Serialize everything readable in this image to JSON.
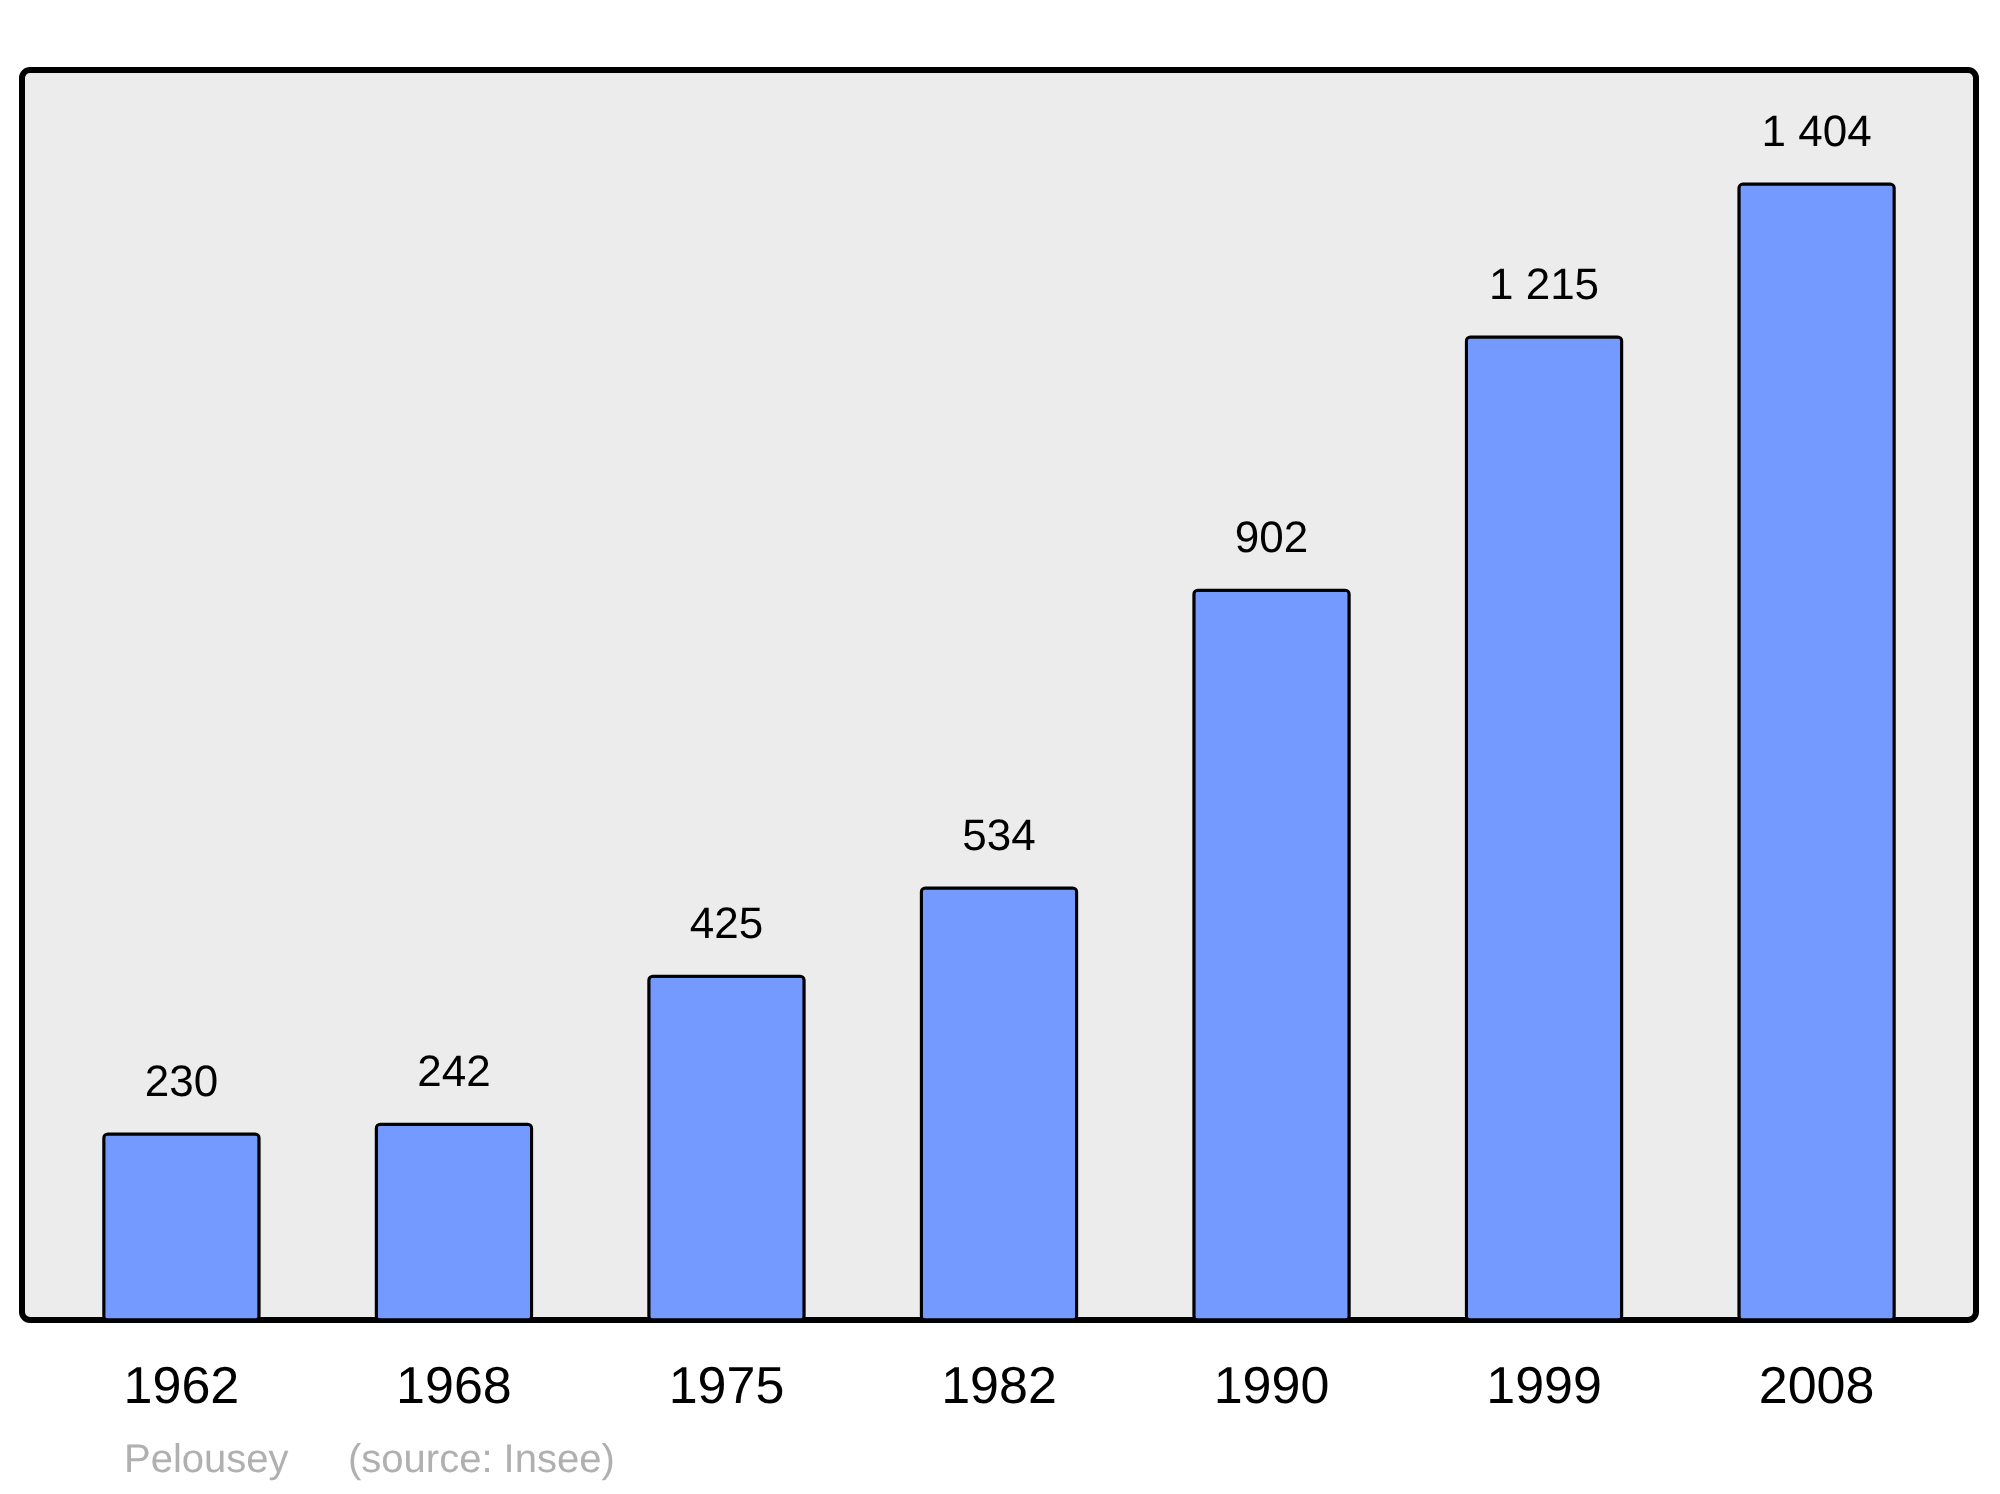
{
  "chart_data": {
    "type": "bar",
    "categories": [
      "1962",
      "1968",
      "1975",
      "1982",
      "1990",
      "1999",
      "2008"
    ],
    "values": [
      230,
      242,
      425,
      534,
      902,
      1215,
      1404
    ],
    "value_labels": [
      "230",
      "242",
      "425",
      "534",
      "902",
      "1 215",
      "1 404"
    ],
    "color": "#7499ff",
    "ylim": [
      0,
      1545
    ],
    "grid": false,
    "annotations": [
      "Pelousey",
      "(source: Insee)"
    ]
  }
}
